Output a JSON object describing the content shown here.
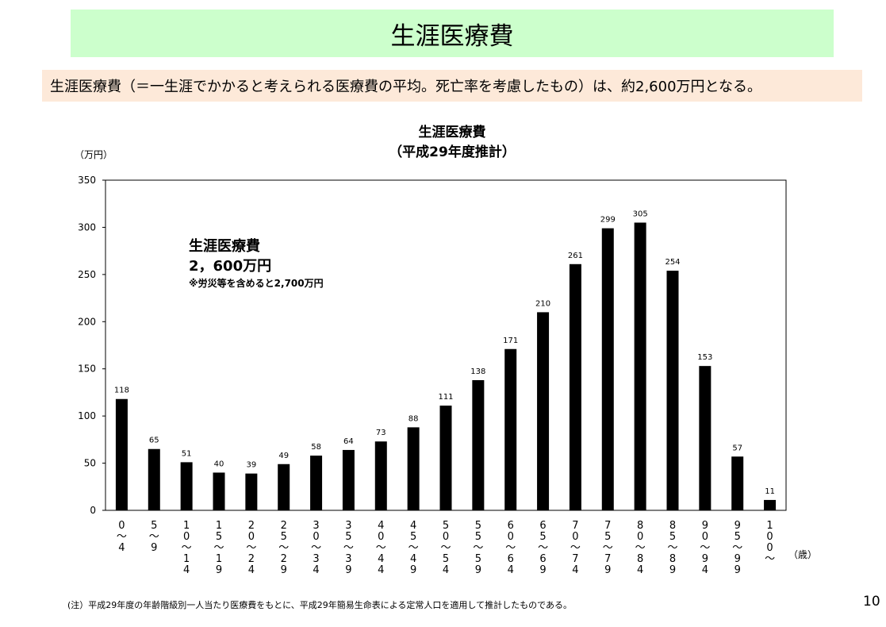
{
  "slide": {
    "title": "生涯医療費",
    "summary": "生涯医療費（＝一生涯でかかると考えられる医療費の平均。死亡率を考慮したもの）は、約2,600万円となる。",
    "footnote": "(注）平成29年度の年齢階級別一人当たり医療費をもとに、平成29年簡易生命表による定常人口を適用して推計したものである。",
    "page_number": "10"
  },
  "annotation": {
    "title": "生涯医療費",
    "total": "2，600万円",
    "note": "※労災等を含めると2,700万円"
  },
  "chart_data": {
    "type": "bar",
    "title": "生涯医療費",
    "subtitle": "（平成29年度推計）",
    "ylabel": "（万円）",
    "xlabel": "（歳）",
    "ylim": [
      0,
      350
    ],
    "yticks": [
      "0",
      "50",
      "100",
      "150",
      "200",
      "250",
      "300",
      "350"
    ],
    "categories": [
      "0～4",
      "5～9",
      "10～14",
      "15～19",
      "20～24",
      "25～29",
      "30～34",
      "35～39",
      "40～44",
      "45～49",
      "50～54",
      "55～59",
      "60～64",
      "65～69",
      "70～74",
      "75～79",
      "80～84",
      "85～89",
      "90～94",
      "95～99",
      "100～"
    ],
    "category_labels": [
      [
        "0",
        "～",
        "4"
      ],
      [
        "5",
        "～",
        "9"
      ],
      [
        "1",
        "0",
        "～",
        "1",
        "4"
      ],
      [
        "1",
        "5",
        "～",
        "1",
        "9"
      ],
      [
        "2",
        "0",
        "～",
        "2",
        "4"
      ],
      [
        "2",
        "5",
        "～",
        "2",
        "9"
      ],
      [
        "3",
        "0",
        "～",
        "3",
        "4"
      ],
      [
        "3",
        "5",
        "～",
        "3",
        "9"
      ],
      [
        "4",
        "0",
        "～",
        "4",
        "4"
      ],
      [
        "4",
        "5",
        "～",
        "4",
        "9"
      ],
      [
        "5",
        "0",
        "～",
        "5",
        "4"
      ],
      [
        "5",
        "5",
        "～",
        "5",
        "9"
      ],
      [
        "6",
        "0",
        "～",
        "6",
        "4"
      ],
      [
        "6",
        "5",
        "～",
        "6",
        "9"
      ],
      [
        "7",
        "0",
        "～",
        "7",
        "4"
      ],
      [
        "7",
        "5",
        "～",
        "7",
        "9"
      ],
      [
        "8",
        "0",
        "～",
        "8",
        "4"
      ],
      [
        "8",
        "5",
        "～",
        "8",
        "9"
      ],
      [
        "9",
        "0",
        "～",
        "9",
        "4"
      ],
      [
        "9",
        "5",
        "～",
        "9",
        "9"
      ],
      [
        "1",
        "0",
        "0",
        "～"
      ]
    ],
    "values": [
      118,
      65,
      51,
      40,
      39,
      49,
      58,
      64,
      73,
      88,
      111,
      138,
      171,
      210,
      261,
      299,
      305,
      254,
      153,
      57,
      11
    ],
    "bar_color": "#000000",
    "grid": false,
    "legend": "none"
  }
}
